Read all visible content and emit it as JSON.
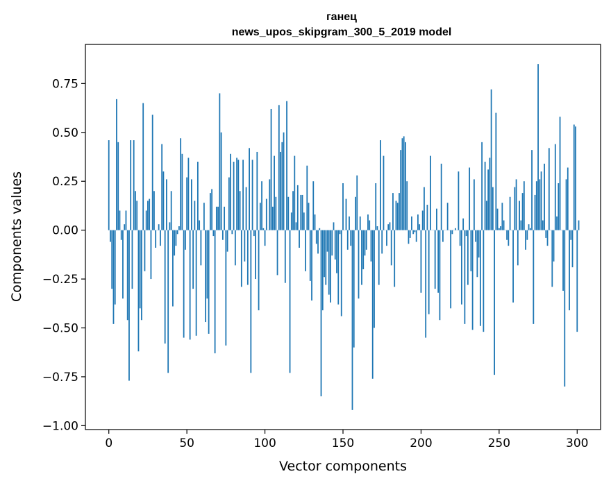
{
  "chart_data": {
    "type": "bar",
    "title": "ганец",
    "subtitle": "news_upos_skipgram_300_5_2019 model",
    "xlabel": "Vector components",
    "ylabel": "Components values",
    "xlim": [
      -15,
      315
    ],
    "ylim": [
      -1.02,
      0.95
    ],
    "xticks": [
      0,
      50,
      100,
      150,
      200,
      250,
      300
    ],
    "xtick_labels": [
      "0",
      "50",
      "100",
      "150",
      "200",
      "250",
      "300"
    ],
    "yticks": [
      -1.0,
      -0.75,
      -0.5,
      -0.25,
      0.0,
      0.25,
      0.5,
      0.75
    ],
    "ytick_labels": [
      "−1.00",
      "−0.75",
      "−0.50",
      "−0.25",
      "0.00",
      "0.25",
      "0.50",
      "0.75"
    ],
    "grid": false,
    "bar_color": "#1f77b4",
    "values": [
      0.46,
      -0.06,
      -0.3,
      -0.48,
      -0.38,
      0.67,
      0.45,
      0.1,
      -0.05,
      -0.35,
      0.03,
      0.1,
      -0.46,
      -0.77,
      0.46,
      -0.3,
      0.46,
      0.2,
      0.15,
      -0.62,
      -0.4,
      -0.46,
      0.65,
      -0.21,
      0.1,
      0.15,
      0.16,
      -0.25,
      0.59,
      0.2,
      -0.09,
      0.0,
      0.03,
      -0.08,
      0.44,
      0.3,
      -0.58,
      0.26,
      -0.73,
      0.04,
      0.2,
      -0.39,
      -0.13,
      -0.08,
      -0.02,
      0.02,
      0.47,
      0.39,
      -0.55,
      -0.1,
      0.27,
      0.37,
      -0.56,
      0.26,
      -0.3,
      0.15,
      -0.54,
      0.35,
      0.05,
      -0.18,
      0.0,
      0.14,
      -0.47,
      -0.35,
      -0.53,
      0.19,
      0.21,
      -0.03,
      -0.63,
      0.12,
      0.12,
      0.7,
      0.5,
      -0.05,
      0.12,
      -0.59,
      -0.11,
      0.27,
      0.39,
      -0.02,
      0.35,
      -0.18,
      0.37,
      0.36,
      0.2,
      -0.29,
      0.36,
      -0.16,
      0.22,
      -0.28,
      0.42,
      -0.73,
      0.36,
      -0.03,
      -0.25,
      0.4,
      -0.41,
      0.14,
      0.25,
      0.01,
      -0.08,
      0.16,
      0.0,
      0.26,
      0.62,
      0.12,
      0.38,
      0.17,
      -0.23,
      0.64,
      0.4,
      0.45,
      0.5,
      -0.27,
      0.66,
      0.17,
      -0.73,
      0.09,
      0.2,
      0.38,
      0.04,
      0.23,
      -0.09,
      0.18,
      0.18,
      0.09,
      -0.21,
      0.33,
      0.14,
      -0.26,
      -0.36,
      0.25,
      0.08,
      -0.07,
      -0.12,
      0.01,
      -0.85,
      -0.41,
      -0.24,
      -0.28,
      -0.11,
      -0.33,
      -0.37,
      -0.13,
      0.04,
      -0.15,
      -0.22,
      -0.38,
      -0.02,
      -0.44,
      0.24,
      0.0,
      0.16,
      -0.1,
      0.07,
      -0.08,
      -0.92,
      -0.6,
      0.17,
      0.28,
      -0.35,
      0.07,
      -0.28,
      -0.2,
      -0.13,
      -0.1,
      0.08,
      0.05,
      -0.16,
      -0.76,
      -0.5,
      0.24,
      0.02,
      -0.28,
      0.46,
      -0.12,
      0.38,
      0.0,
      -0.08,
      0.03,
      0.04,
      -0.18,
      0.19,
      -0.29,
      0.15,
      0.14,
      0.19,
      0.41,
      0.47,
      0.48,
      0.45,
      0.25,
      -0.07,
      -0.04,
      0.07,
      -0.02,
      -0.01,
      -0.06,
      0.08,
      0.03,
      -0.32,
      0.1,
      0.22,
      -0.55,
      0.13,
      -0.43,
      0.38,
      0.0,
      0.0,
      -0.3,
      0.11,
      -0.32,
      -0.46,
      0.34,
      -0.06,
      0.0,
      0.0,
      0.14,
      0.0,
      -0.4,
      -0.02,
      0.0,
      0.01,
      0.0,
      0.3,
      -0.08,
      -0.38,
      0.06,
      -0.48,
      -0.03,
      -0.28,
      0.32,
      -0.21,
      -0.51,
      0.26,
      -0.06,
      -0.24,
      -0.14,
      -0.49,
      0.45,
      -0.52,
      0.35,
      0.15,
      0.31,
      0.37,
      0.72,
      0.22,
      -0.74,
      0.6,
      0.11,
      0.01,
      0.02,
      0.14,
      0.05,
      0.0,
      -0.05,
      -0.08,
      0.17,
      0.0,
      -0.37,
      0.22,
      0.26,
      -0.18,
      0.15,
      0.05,
      0.19,
      0.25,
      -0.1,
      -0.05,
      0.03,
      0.01,
      0.41,
      -0.48,
      0.18,
      0.25,
      0.85,
      0.26,
      0.3,
      0.05,
      0.34,
      -0.04,
      -0.08,
      0.42,
      0.0,
      -0.29,
      -0.16,
      0.44,
      0.07,
      0.24,
      0.58,
      0.0,
      -0.31,
      -0.8,
      0.26,
      0.32,
      -0.41,
      -0.05,
      -0.19,
      0.54,
      0.53,
      -0.52,
      0.05
    ]
  }
}
